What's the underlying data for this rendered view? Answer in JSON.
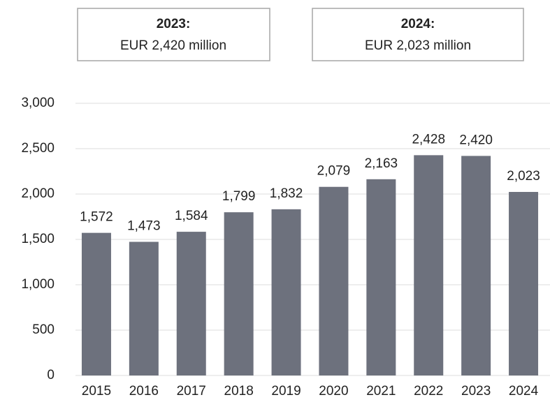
{
  "chart_data": {
    "type": "bar",
    "annotations": [
      {
        "title": "2023:",
        "text": "EUR 2,420 million"
      },
      {
        "title": "2024:",
        "text": "EUR 2,023 million"
      }
    ],
    "categories": [
      "2015",
      "2016",
      "2017",
      "2018",
      "2019",
      "2020",
      "2021",
      "2022",
      "2023",
      "2024"
    ],
    "values": [
      1572,
      1473,
      1584,
      1799,
      1832,
      2079,
      2163,
      2428,
      2420,
      2023
    ],
    "value_labels": [
      "1,572",
      "1,473",
      "1,584",
      "1,799",
      "1,832",
      "2,079",
      "2,163",
      "2,428",
      "2,420",
      "2,023"
    ],
    "color": "#6d717d",
    "ylim": [
      0,
      3000
    ],
    "yticks": [
      0,
      500,
      {
        "value": 1000,
        "label": "1,000"
      },
      {
        "value": 1500,
        "label": "1,500"
      },
      {
        "value": 2000,
        "label": "2,000"
      },
      {
        "value": 2500,
        "label": "2,500"
      },
      {
        "value": 3000,
        "label": "3,000"
      }
    ],
    "grid": true
  }
}
